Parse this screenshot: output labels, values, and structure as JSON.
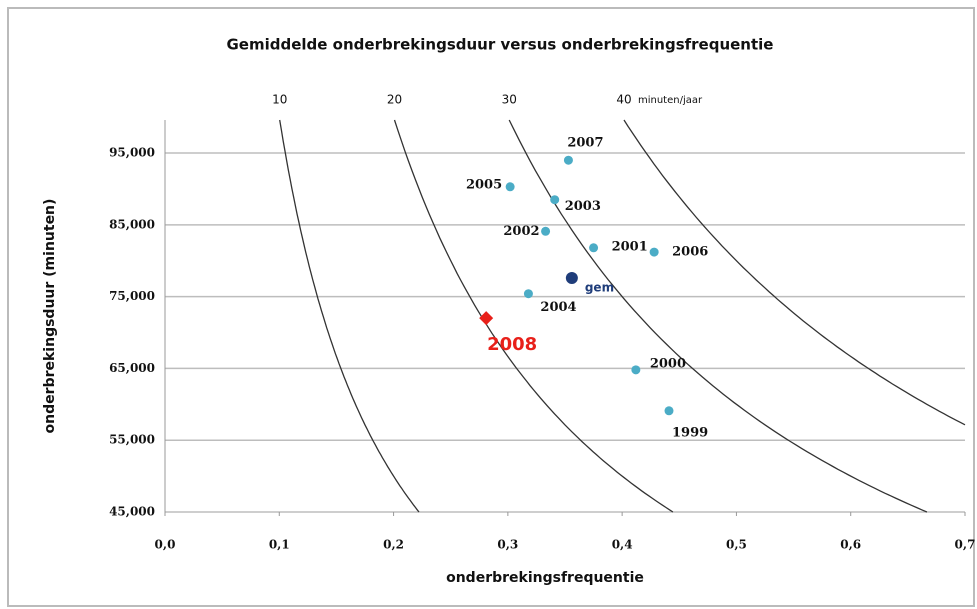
{
  "chart_data": {
    "type": "scatter",
    "title": "Gemiddelde onderbrekingsduur versus onderbrekingsfrequentie",
    "x_label": "onderbrekingsfrequentie",
    "y_label": "onderbrekingsduur (minuten)",
    "xlim": [
      0,
      0.7
    ],
    "ylim": [
      45,
      99.6
    ],
    "xticks": [
      {
        "value": 0,
        "label": "0,0"
      },
      {
        "value": 0.1,
        "label": "0,1"
      },
      {
        "value": 0.2,
        "label": "0,2"
      },
      {
        "value": 0.3,
        "label": "0,3"
      },
      {
        "value": 0.4,
        "label": "0,4"
      },
      {
        "value": 0.5,
        "label": "0,5"
      },
      {
        "value": 0.6,
        "label": "0,6"
      },
      {
        "value": 0.7,
        "label": "0,7"
      }
    ],
    "yticks": [
      {
        "value": 45,
        "label": "45,000"
      },
      {
        "value": 55,
        "label": "55,000"
      },
      {
        "value": 65,
        "label": "65,000"
      },
      {
        "value": 75,
        "label": "75,000"
      },
      {
        "value": 85,
        "label": "85,000"
      },
      {
        "value": 95,
        "label": "95,000"
      }
    ],
    "grid": true,
    "isolines": [
      10,
      20,
      30,
      40
    ],
    "isoline_unit": "minuten/jaar",
    "points": [
      {
        "label": "2007",
        "x": 0.353,
        "y": 94.0,
        "color": "#4bacc6",
        "marker": "circle"
      },
      {
        "label": "2005",
        "x": 0.302,
        "y": 90.3,
        "color": "#4bacc6",
        "marker": "circle"
      },
      {
        "label": "2003",
        "x": 0.341,
        "y": 88.5,
        "color": "#4bacc6",
        "marker": "circle"
      },
      {
        "label": "2002",
        "x": 0.333,
        "y": 84.1,
        "color": "#4bacc6",
        "marker": "circle"
      },
      {
        "label": "2001",
        "x": 0.375,
        "y": 81.8,
        "color": "#4bacc6",
        "marker": "circle"
      },
      {
        "label": "2006",
        "x": 0.428,
        "y": 81.2,
        "color": "#4bacc6",
        "marker": "circle"
      },
      {
        "label": "gem",
        "x": 0.356,
        "y": 77.6,
        "color": "#1f3d7a",
        "marker": "circle"
      },
      {
        "label": "2004",
        "x": 0.318,
        "y": 75.4,
        "color": "#4bacc6",
        "marker": "circle"
      },
      {
        "label": "2008",
        "x": 0.281,
        "y": 72.0,
        "color": "#e8201a",
        "marker": "diamond"
      },
      {
        "label": "2000",
        "x": 0.412,
        "y": 64.8,
        "color": "#4bacc6",
        "marker": "circle"
      },
      {
        "label": "1999",
        "x": 0.441,
        "y": 59.1,
        "color": "#4bacc6",
        "marker": "circle"
      }
    ]
  }
}
